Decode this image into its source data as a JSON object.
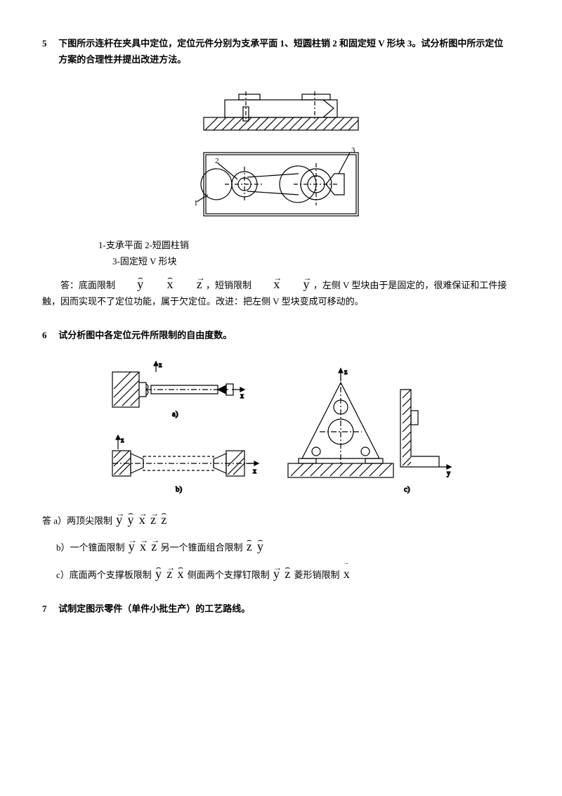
{
  "q5": {
    "num": "5",
    "text": "下图所示连杆在夹具中定位，定位元件分别为支承平面 1、短圆柱销 2 和固定短 V 形块 3。试分析图中所示定位方案的合理性并提出改进方法。",
    "legend_line1": "1-支承平面    2-短圆柱销",
    "legend_line2": "3-固定短 V 形块",
    "ans_prefix": "答：底面限制 ",
    "ans_mid1": "，短销限制 ",
    "ans_mid2": " ，左侧 V 型块由于是固定的，很难保证和工件接触，因而实现不了定位功能，属于欠定位。改进：把左侧 V 型块变成可移动的。",
    "sym1": "y",
    "sym1_type": "hat",
    "sym2": "x",
    "sym2_type": "hat",
    "sym3": "z",
    "sym3_type": "arrow",
    "sym4": "x",
    "sym4_type": "arrow",
    "sym5": "y",
    "sym5_type": "arrow"
  },
  "q6": {
    "num": "6",
    "text": "试分析图中各定位元件所限制的自由度数。",
    "a_label": "答 a）两顶尖限制",
    "a_syms": [
      {
        "l": "y",
        "t": "arrow"
      },
      {
        "l": "y",
        "t": "hat"
      },
      {
        "l": "x",
        "t": "arrow"
      },
      {
        "l": "z",
        "t": "arrow"
      },
      {
        "l": "z",
        "t": "hat"
      }
    ],
    "b_label": "b）一个锥面限制",
    "b_syms1": [
      {
        "l": "y",
        "t": "arrow"
      },
      {
        "l": "x",
        "t": "arrow"
      },
      {
        "l": "z",
        "t": "arrow"
      }
    ],
    "b_mid": " 另一个锥面组合限制",
    "b_syms2": [
      {
        "l": "z",
        "t": "hat"
      },
      {
        "l": "y",
        "t": "hat"
      }
    ],
    "c_label": "c）底面两个支撑板限制 ",
    "c_syms1": [
      {
        "l": "y",
        "t": "hat"
      },
      {
        "l": "z",
        "t": "arrow"
      },
      {
        "l": "x",
        "t": "hat"
      }
    ],
    "c_mid1": "侧面两个支撑钉限制",
    "c_syms2": [
      {
        "l": "y",
        "t": "arrow"
      },
      {
        "l": "z",
        "t": "hat"
      }
    ],
    "c_mid2": " 菱形销限制 ",
    "c_syms3": [
      {
        "l": "x",
        "t": "bar"
      }
    ]
  },
  "q7": {
    "num": "7",
    "text": "试制定图示零件（单件小批生产）的工艺路线。"
  },
  "fig5": {
    "stroke": "#000",
    "fill": "none",
    "hatch": "#000"
  },
  "fig6": {
    "stroke": "#000"
  }
}
